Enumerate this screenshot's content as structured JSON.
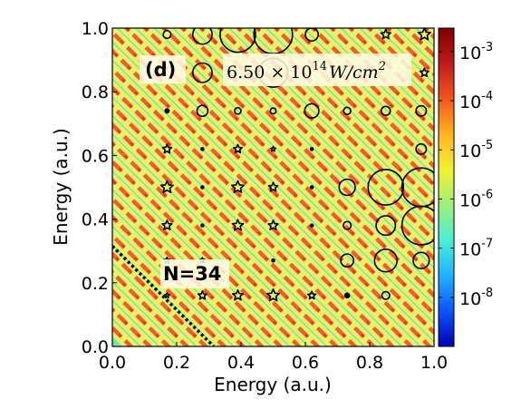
{
  "chart_data": {
    "type": "heatmap",
    "title": "",
    "xlabel": "Energy (a.u.)",
    "ylabel": "Energy (a.u.)",
    "xlim": [
      0.0,
      1.0
    ],
    "ylim": [
      0.0,
      1.0
    ],
    "xticks": [
      "0.0",
      "0.2",
      "0.4",
      "0.6",
      "0.8",
      "1.0"
    ],
    "yticks": [
      "0.0",
      "0.2",
      "0.4",
      "0.6",
      "0.8",
      "1.0"
    ],
    "colorbar": {
      "scale": "log",
      "range": [
        1e-09,
        0.003
      ],
      "tick_base": [
        "10",
        "10",
        "10",
        "10",
        "10",
        "10"
      ],
      "tick_exp": [
        "-3",
        "-4",
        "-5",
        "-6",
        "-7",
        "-8"
      ]
    },
    "panel_label": "(d)",
    "intensity_label": {
      "mantissa": "6.50",
      "exponent": "14",
      "unit": "W/cm",
      "unit_exp": "2"
    },
    "photon_label": "N=34",
    "diagonal_line": {
      "from": [
        0.0,
        0.315
      ],
      "to": [
        0.315,
        0.0
      ],
      "style": "dotted"
    },
    "stripe_spacing": 0.058,
    "circle_markers": [
      {
        "x": 0.17,
        "y": 0.98,
        "r": 0.012
      },
      {
        "x": 0.28,
        "y": 0.98,
        "r": 0.03
      },
      {
        "x": 0.39,
        "y": 0.98,
        "r": 0.055
      },
      {
        "x": 0.5,
        "y": 0.98,
        "r": 0.06
      },
      {
        "x": 0.62,
        "y": 0.98,
        "r": 0.02
      },
      {
        "x": 0.28,
        "y": 0.86,
        "r": 0.03
      },
      {
        "x": 0.5,
        "y": 0.86,
        "r": 0.045
      },
      {
        "x": 0.17,
        "y": 0.74,
        "r": 0.006
      },
      {
        "x": 0.28,
        "y": 0.74,
        "r": 0.017
      },
      {
        "x": 0.39,
        "y": 0.74,
        "r": 0.01
      },
      {
        "x": 0.5,
        "y": 0.74,
        "r": 0.009
      },
      {
        "x": 0.62,
        "y": 0.74,
        "r": 0.022
      },
      {
        "x": 0.73,
        "y": 0.74,
        "r": 0.011
      },
      {
        "x": 0.85,
        "y": 0.74,
        "r": 0.014
      },
      {
        "x": 0.96,
        "y": 0.74,
        "r": 0.016
      },
      {
        "x": 0.28,
        "y": 0.62,
        "r": 0.004
      },
      {
        "x": 0.62,
        "y": 0.62,
        "r": 0.004
      },
      {
        "x": 0.96,
        "y": 0.62,
        "r": 0.016
      },
      {
        "x": 0.28,
        "y": 0.5,
        "r": 0.003
      },
      {
        "x": 0.62,
        "y": 0.5,
        "r": 0.003
      },
      {
        "x": 0.73,
        "y": 0.5,
        "r": 0.025
      },
      {
        "x": 0.85,
        "y": 0.5,
        "r": 0.055
      },
      {
        "x": 0.96,
        "y": 0.5,
        "r": 0.06
      },
      {
        "x": 0.28,
        "y": 0.38,
        "r": 0.004
      },
      {
        "x": 0.62,
        "y": 0.38,
        "r": 0.004
      },
      {
        "x": 0.73,
        "y": 0.38,
        "r": 0.012
      },
      {
        "x": 0.85,
        "y": 0.38,
        "r": 0.03
      },
      {
        "x": 0.96,
        "y": 0.38,
        "r": 0.06
      },
      {
        "x": 0.5,
        "y": 0.27,
        "r": 0.004
      },
      {
        "x": 0.73,
        "y": 0.27,
        "r": 0.02
      },
      {
        "x": 0.85,
        "y": 0.27,
        "r": 0.035
      },
      {
        "x": 0.96,
        "y": 0.27,
        "r": 0.025
      },
      {
        "x": 0.73,
        "y": 0.16,
        "r": 0.007
      },
      {
        "x": 0.85,
        "y": 0.16,
        "r": 0.012
      }
    ],
    "star_markers": [
      {
        "x": 0.85,
        "y": 0.98,
        "s": 0.016
      },
      {
        "x": 0.97,
        "y": 0.98,
        "s": 0.02
      },
      {
        "x": 0.97,
        "y": 0.86,
        "s": 0.014
      },
      {
        "x": 0.17,
        "y": 0.62,
        "s": 0.015
      },
      {
        "x": 0.39,
        "y": 0.62,
        "s": 0.014
      },
      {
        "x": 0.5,
        "y": 0.62,
        "s": 0.008
      },
      {
        "x": 0.17,
        "y": 0.5,
        "s": 0.02
      },
      {
        "x": 0.39,
        "y": 0.5,
        "s": 0.02
      },
      {
        "x": 0.5,
        "y": 0.5,
        "s": 0.015
      },
      {
        "x": 0.17,
        "y": 0.38,
        "s": 0.016
      },
      {
        "x": 0.39,
        "y": 0.38,
        "s": 0.018
      },
      {
        "x": 0.5,
        "y": 0.38,
        "s": 0.016
      },
      {
        "x": 0.17,
        "y": 0.27,
        "s": 0.01
      },
      {
        "x": 0.28,
        "y": 0.27,
        "s": 0.009
      },
      {
        "x": 0.17,
        "y": 0.16,
        "s": 0.008
      },
      {
        "x": 0.28,
        "y": 0.16,
        "s": 0.014
      },
      {
        "x": 0.39,
        "y": 0.16,
        "s": 0.017
      },
      {
        "x": 0.5,
        "y": 0.16,
        "s": 0.02
      },
      {
        "x": 0.62,
        "y": 0.16,
        "s": 0.013
      }
    ],
    "colors": {
      "background": "#72e6a6",
      "stripe_light": "#e9f06a",
      "stripe_hot": "#f25c2c",
      "stripe_core": "#d9261f",
      "colorbar": [
        "#0000b0",
        "#0a55ff",
        "#1fb1ff",
        "#47f0d8",
        "#9cf07a",
        "#f2f22a",
        "#ffb41f",
        "#f2571a",
        "#c21a1a",
        "#7f0000"
      ]
    }
  }
}
